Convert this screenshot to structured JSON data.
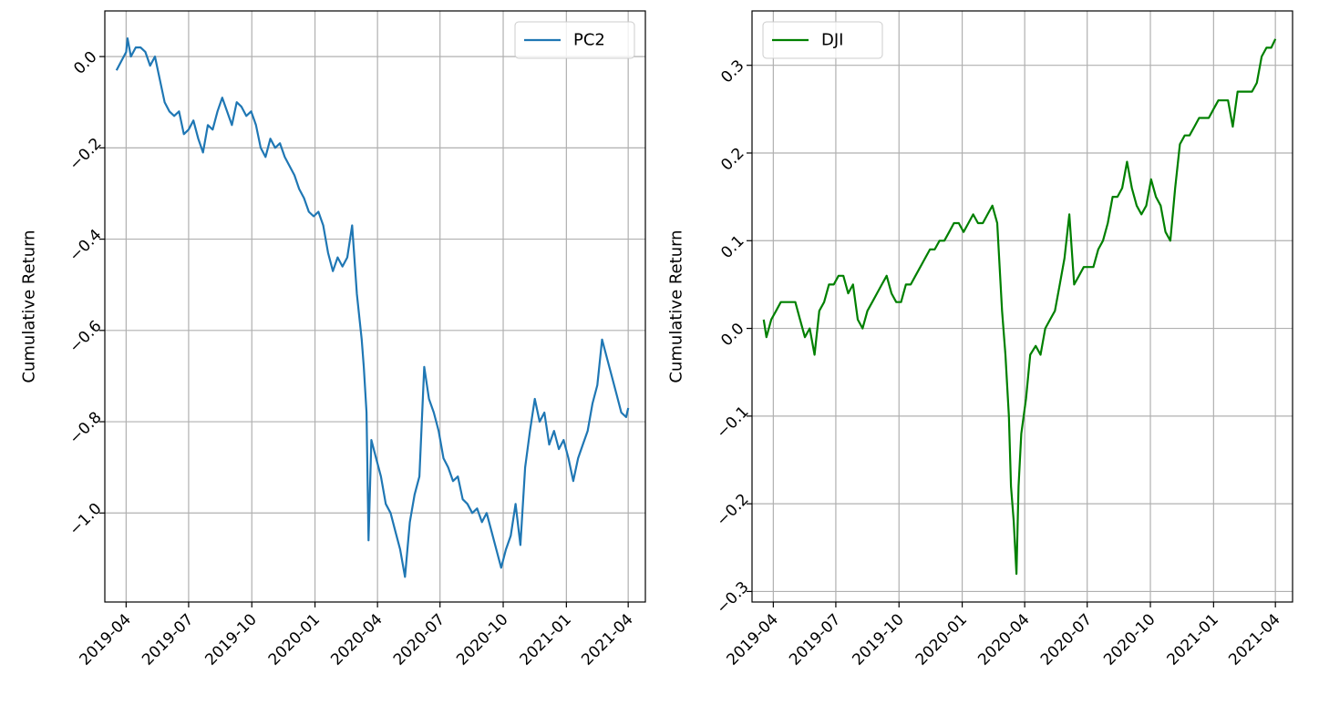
{
  "chart_data": [
    {
      "type": "line",
      "title": "",
      "xlabel": "",
      "ylabel": "Cumulative Return",
      "grid": true,
      "legend": "upper-right",
      "xlim": [
        "2019-03-01",
        "2021-04-26"
      ],
      "ylim": [
        -1.195,
        0.1
      ],
      "xticks": [
        "2019-04",
        "2019-07",
        "2019-10",
        "2020-01",
        "2020-04",
        "2020-07",
        "2020-10",
        "2021-01",
        "2021-04"
      ],
      "xtick_values": [
        "2019-04-01",
        "2019-07-01",
        "2019-10-01",
        "2020-01-01",
        "2020-04-01",
        "2020-07-01",
        "2020-10-01",
        "2021-01-01",
        "2021-04-01"
      ],
      "yticks": [
        0.0,
        -0.2,
        -0.4,
        -0.6,
        -0.8,
        -1.0
      ],
      "ytick_labels": [
        "0.0",
        "−0.2",
        "−0.4",
        "−0.6",
        "−0.8",
        "−1.0"
      ],
      "series": [
        {
          "name": "PC2",
          "color": "#1f77b4",
          "x": [
            "2019-03-18",
            "2019-03-25",
            "2019-04-01",
            "2019-04-03",
            "2019-04-08",
            "2019-04-15",
            "2019-04-22",
            "2019-04-29",
            "2019-05-06",
            "2019-05-13",
            "2019-05-20",
            "2019-05-27",
            "2019-06-03",
            "2019-06-10",
            "2019-06-17",
            "2019-06-24",
            "2019-07-01",
            "2019-07-08",
            "2019-07-15",
            "2019-07-22",
            "2019-07-29",
            "2019-08-05",
            "2019-08-12",
            "2019-08-19",
            "2019-08-26",
            "2019-09-02",
            "2019-09-09",
            "2019-09-16",
            "2019-09-23",
            "2019-09-30",
            "2019-10-07",
            "2019-10-14",
            "2019-10-21",
            "2019-10-28",
            "2019-11-04",
            "2019-11-11",
            "2019-11-18",
            "2019-11-25",
            "2019-12-02",
            "2019-12-09",
            "2019-12-16",
            "2019-12-23",
            "2019-12-30",
            "2020-01-06",
            "2020-01-13",
            "2020-01-20",
            "2020-01-27",
            "2020-02-03",
            "2020-02-10",
            "2020-02-17",
            "2020-02-24",
            "2020-03-02",
            "2020-03-09",
            "2020-03-12",
            "2020-03-16",
            "2020-03-19",
            "2020-03-23",
            "2020-03-30",
            "2020-04-06",
            "2020-04-13",
            "2020-04-20",
            "2020-04-27",
            "2020-05-04",
            "2020-05-11",
            "2020-05-18",
            "2020-05-25",
            "2020-06-01",
            "2020-06-08",
            "2020-06-15",
            "2020-06-22",
            "2020-06-29",
            "2020-07-06",
            "2020-07-13",
            "2020-07-20",
            "2020-07-27",
            "2020-08-03",
            "2020-08-10",
            "2020-08-17",
            "2020-08-24",
            "2020-08-31",
            "2020-09-07",
            "2020-09-14",
            "2020-09-21",
            "2020-09-28",
            "2020-10-05",
            "2020-10-12",
            "2020-10-19",
            "2020-10-26",
            "2020-11-02",
            "2020-11-09",
            "2020-11-16",
            "2020-11-23",
            "2020-11-30",
            "2020-12-07",
            "2020-12-14",
            "2020-12-21",
            "2020-12-28",
            "2021-01-04",
            "2021-01-11",
            "2021-01-18",
            "2021-01-25",
            "2021-02-01",
            "2021-02-08",
            "2021-02-15",
            "2021-02-22",
            "2021-03-01",
            "2021-03-08",
            "2021-03-15",
            "2021-03-22",
            "2021-03-29",
            "2021-04-01"
          ],
          "y": [
            -0.03,
            -0.01,
            0.01,
            0.04,
            0.0,
            0.02,
            0.02,
            0.01,
            -0.02,
            0.0,
            -0.05,
            -0.1,
            -0.12,
            -0.13,
            -0.12,
            -0.17,
            -0.16,
            -0.14,
            -0.18,
            -0.21,
            -0.15,
            -0.16,
            -0.12,
            -0.09,
            -0.12,
            -0.15,
            -0.1,
            -0.11,
            -0.13,
            -0.12,
            -0.15,
            -0.2,
            -0.22,
            -0.18,
            -0.2,
            -0.19,
            -0.22,
            -0.24,
            -0.26,
            -0.29,
            -0.31,
            -0.34,
            -0.35,
            -0.34,
            -0.37,
            -0.43,
            -0.47,
            -0.44,
            -0.46,
            -0.44,
            -0.37,
            -0.52,
            -0.62,
            -0.68,
            -0.78,
            -1.06,
            -0.84,
            -0.88,
            -0.92,
            -0.98,
            -1.0,
            -1.04,
            -1.08,
            -1.14,
            -1.02,
            -0.96,
            -0.92,
            -0.68,
            -0.75,
            -0.78,
            -0.82,
            -0.88,
            -0.9,
            -0.93,
            -0.92,
            -0.97,
            -0.98,
            -1.0,
            -0.99,
            -1.02,
            -1.0,
            -1.04,
            -1.08,
            -1.12,
            -1.08,
            -1.05,
            -0.98,
            -1.07,
            -0.9,
            -0.82,
            -0.75,
            -0.8,
            -0.78,
            -0.85,
            -0.82,
            -0.86,
            -0.84,
            -0.88,
            -0.93,
            -0.88,
            -0.85,
            -0.82,
            -0.76,
            -0.72,
            -0.62,
            -0.66,
            -0.7,
            -0.74,
            -0.78,
            -0.79,
            -0.77
          ]
        }
      ]
    },
    {
      "type": "line",
      "title": "",
      "xlabel": "",
      "ylabel": "Cumulative Return",
      "grid": true,
      "legend": "upper-left",
      "xlim": [
        "2019-03-01",
        "2021-04-26"
      ],
      "ylim": [
        -0.312,
        0.362
      ],
      "xticks": [
        "2019-04",
        "2019-07",
        "2019-10",
        "2020-01",
        "2020-04",
        "2020-07",
        "2020-10",
        "2021-01",
        "2021-04"
      ],
      "xtick_values": [
        "2019-04-01",
        "2019-07-01",
        "2019-10-01",
        "2020-01-01",
        "2020-04-01",
        "2020-07-01",
        "2020-10-01",
        "2021-01-01",
        "2021-04-01"
      ],
      "yticks": [
        0.3,
        0.2,
        0.1,
        0.0,
        -0.1,
        -0.2,
        -0.3
      ],
      "ytick_labels": [
        "0.3",
        "0.2",
        "0.1",
        "0.0",
        "−0.1",
        "−0.2",
        "−0.3"
      ],
      "series": [
        {
          "name": "DJI",
          "color": "#008000",
          "x": [
            "2019-03-18",
            "2019-03-22",
            "2019-03-29",
            "2019-04-05",
            "2019-04-12",
            "2019-04-19",
            "2019-04-26",
            "2019-05-03",
            "2019-05-10",
            "2019-05-17",
            "2019-05-24",
            "2019-05-31",
            "2019-06-07",
            "2019-06-14",
            "2019-06-21",
            "2019-06-28",
            "2019-07-05",
            "2019-07-12",
            "2019-07-19",
            "2019-07-26",
            "2019-08-02",
            "2019-08-09",
            "2019-08-16",
            "2019-08-23",
            "2019-08-30",
            "2019-09-06",
            "2019-09-13",
            "2019-09-20",
            "2019-09-27",
            "2019-10-04",
            "2019-10-11",
            "2019-10-18",
            "2019-10-25",
            "2019-11-01",
            "2019-11-08",
            "2019-11-15",
            "2019-11-22",
            "2019-11-29",
            "2019-12-06",
            "2019-12-13",
            "2019-12-20",
            "2019-12-27",
            "2020-01-03",
            "2020-01-10",
            "2020-01-17",
            "2020-01-24",
            "2020-01-31",
            "2020-02-07",
            "2020-02-14",
            "2020-02-21",
            "2020-02-28",
            "2020-03-04",
            "2020-03-09",
            "2020-03-12",
            "2020-03-16",
            "2020-03-20",
            "2020-03-23",
            "2020-03-27",
            "2020-04-03",
            "2020-04-09",
            "2020-04-17",
            "2020-04-24",
            "2020-05-01",
            "2020-05-08",
            "2020-05-15",
            "2020-05-22",
            "2020-05-29",
            "2020-06-05",
            "2020-06-12",
            "2020-06-19",
            "2020-06-26",
            "2020-07-03",
            "2020-07-10",
            "2020-07-17",
            "2020-07-24",
            "2020-07-31",
            "2020-08-07",
            "2020-08-14",
            "2020-08-21",
            "2020-08-28",
            "2020-09-04",
            "2020-09-11",
            "2020-09-18",
            "2020-09-25",
            "2020-10-02",
            "2020-10-09",
            "2020-10-16",
            "2020-10-23",
            "2020-10-30",
            "2020-11-06",
            "2020-11-13",
            "2020-11-20",
            "2020-11-27",
            "2020-12-04",
            "2020-12-11",
            "2020-12-18",
            "2020-12-25",
            "2021-01-01",
            "2021-01-08",
            "2021-01-15",
            "2021-01-22",
            "2021-01-29",
            "2021-02-05",
            "2021-02-12",
            "2021-02-19",
            "2021-02-26",
            "2021-03-05",
            "2021-03-12",
            "2021-03-19",
            "2021-03-26",
            "2021-04-01"
          ],
          "y": [
            0.01,
            -0.01,
            0.01,
            0.02,
            0.03,
            0.03,
            0.03,
            0.03,
            0.01,
            -0.01,
            0.0,
            -0.03,
            0.02,
            0.03,
            0.05,
            0.05,
            0.06,
            0.06,
            0.04,
            0.05,
            0.01,
            0.0,
            0.02,
            0.03,
            0.04,
            0.05,
            0.06,
            0.04,
            0.03,
            0.03,
            0.05,
            0.05,
            0.06,
            0.07,
            0.08,
            0.09,
            0.09,
            0.1,
            0.1,
            0.11,
            0.12,
            0.12,
            0.11,
            0.12,
            0.13,
            0.12,
            0.12,
            0.13,
            0.14,
            0.12,
            0.02,
            -0.03,
            -0.1,
            -0.18,
            -0.22,
            -0.28,
            -0.18,
            -0.12,
            -0.08,
            -0.03,
            -0.02,
            -0.03,
            0.0,
            0.01,
            0.02,
            0.05,
            0.08,
            0.13,
            0.05,
            0.06,
            0.07,
            0.07,
            0.07,
            0.09,
            0.1,
            0.12,
            0.15,
            0.15,
            0.16,
            0.19,
            0.16,
            0.14,
            0.13,
            0.14,
            0.17,
            0.15,
            0.14,
            0.11,
            0.1,
            0.16,
            0.21,
            0.22,
            0.22,
            0.23,
            0.24,
            0.24,
            0.24,
            0.25,
            0.26,
            0.26,
            0.26,
            0.23,
            0.27,
            0.27,
            0.27,
            0.27,
            0.28,
            0.31,
            0.32,
            0.32,
            0.33
          ]
        }
      ]
    }
  ]
}
